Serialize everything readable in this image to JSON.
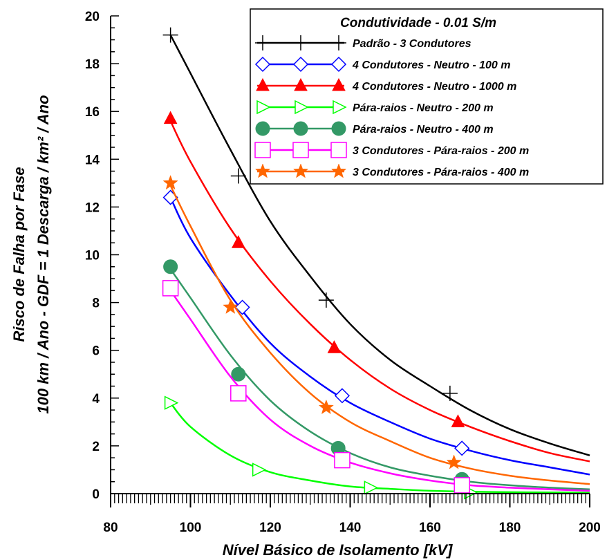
{
  "chart_data": {
    "type": "line",
    "title": "",
    "xlabel": "Nível Básico de Isolamento [kV]",
    "ylabel_line1": "Risco de Falha por Fase",
    "ylabel_line2": "100 km / Ano - GDF = 1 Descarga / km² / Ano",
    "xlim": [
      80,
      200
    ],
    "ylim": [
      0,
      20
    ],
    "xticks": [
      80,
      100,
      120,
      140,
      160,
      180,
      200
    ],
    "yticks": [
      0,
      2,
      4,
      6,
      8,
      10,
      12,
      14,
      16,
      18,
      20
    ],
    "grid": false,
    "legend": {
      "position": "top-right",
      "title": "Condutividade  - 0.01 S/m"
    },
    "series": [
      {
        "name": "Padrão -  3 Condutores",
        "color": "#000000",
        "marker": "plus",
        "curve": [
          [
            95,
            19.2
          ],
          [
            100,
            17.6
          ],
          [
            110,
            14.4
          ],
          [
            120,
            11.4
          ],
          [
            130,
            9.1
          ],
          [
            140,
            7.1
          ],
          [
            150,
            5.6
          ],
          [
            160,
            4.5
          ],
          [
            170,
            3.5
          ],
          [
            180,
            2.7
          ],
          [
            190,
            2.1
          ],
          [
            200,
            1.6
          ]
        ],
        "markers": [
          [
            95,
            19.2
          ],
          [
            112,
            13.3
          ],
          [
            134,
            8.1
          ],
          [
            165,
            4.2
          ]
        ]
      },
      {
        "name": "4 Condutores - Neutro - 100 m",
        "color": "#0000ff",
        "marker": "diamond",
        "curve": [
          [
            95,
            12.4
          ],
          [
            100,
            10.7
          ],
          [
            110,
            8.3
          ],
          [
            120,
            6.3
          ],
          [
            130,
            4.9
          ],
          [
            140,
            3.8
          ],
          [
            150,
            3.0
          ],
          [
            160,
            2.3
          ],
          [
            170,
            1.8
          ],
          [
            180,
            1.4
          ],
          [
            190,
            1.1
          ],
          [
            200,
            0.8
          ]
        ],
        "markers": [
          [
            95,
            12.4
          ],
          [
            113,
            7.8
          ],
          [
            138,
            4.1
          ],
          [
            168,
            1.9
          ]
        ]
      },
      {
        "name": "4 Condutores - Neutro - 1000 m",
        "color": "#ff0000",
        "marker": "triangle",
        "curve": [
          [
            95,
            15.6
          ],
          [
            100,
            13.9
          ],
          [
            110,
            11.1
          ],
          [
            120,
            8.9
          ],
          [
            130,
            7.1
          ],
          [
            140,
            5.6
          ],
          [
            150,
            4.4
          ],
          [
            160,
            3.5
          ],
          [
            170,
            2.8
          ],
          [
            180,
            2.2
          ],
          [
            190,
            1.7
          ],
          [
            200,
            1.35
          ]
        ],
        "markers": [
          [
            95,
            15.7
          ],
          [
            112,
            10.5
          ],
          [
            136,
            6.1
          ],
          [
            167,
            3.0
          ]
        ]
      },
      {
        "name": "Pára-raios - Neutro - 200 m",
        "color": "#00ff00",
        "marker": "triangle-right",
        "curve": [
          [
            95,
            3.8
          ],
          [
            100,
            2.8
          ],
          [
            110,
            1.6
          ],
          [
            120,
            0.9
          ],
          [
            130,
            0.55
          ],
          [
            140,
            0.3
          ],
          [
            150,
            0.2
          ],
          [
            160,
            0.12
          ],
          [
            170,
            0.08
          ],
          [
            180,
            0.06
          ],
          [
            190,
            0.05
          ],
          [
            200,
            0.04
          ]
        ],
        "markers": [
          [
            95,
            3.8
          ],
          [
            117,
            1.0
          ],
          [
            145,
            0.25
          ],
          [
            170,
            0.05
          ]
        ]
      },
      {
        "name": "Pára-raios - Neutro - 400 m",
        "color": "#339966",
        "marker": "circle",
        "curve": [
          [
            95,
            9.4
          ],
          [
            100,
            8.2
          ],
          [
            110,
            5.8
          ],
          [
            120,
            3.9
          ],
          [
            130,
            2.6
          ],
          [
            140,
            1.7
          ],
          [
            150,
            1.1
          ],
          [
            160,
            0.75
          ],
          [
            170,
            0.5
          ],
          [
            180,
            0.35
          ],
          [
            190,
            0.25
          ],
          [
            200,
            0.18
          ]
        ],
        "markers": [
          [
            95,
            9.5
          ],
          [
            112,
            5.0
          ],
          [
            137,
            1.9
          ],
          [
            168,
            0.6
          ]
        ]
      },
      {
        "name": "3 Condutores - Pára-raios - 200 m",
        "color": "#ff00ff",
        "marker": "square",
        "curve": [
          [
            95,
            8.5
          ],
          [
            100,
            7.3
          ],
          [
            110,
            4.9
          ],
          [
            120,
            3.1
          ],
          [
            130,
            2.0
          ],
          [
            140,
            1.3
          ],
          [
            150,
            0.85
          ],
          [
            160,
            0.55
          ],
          [
            170,
            0.35
          ],
          [
            180,
            0.25
          ],
          [
            190,
            0.18
          ],
          [
            200,
            0.12
          ]
        ],
        "markers": [
          [
            95,
            8.6
          ],
          [
            112,
            4.2
          ],
          [
            138,
            1.4
          ],
          [
            168,
            0.35
          ]
        ]
      },
      {
        "name": "3 Condutores - Pára-raios - 400 m",
        "color": "#ff6600",
        "marker": "star",
        "curve": [
          [
            95,
            12.9
          ],
          [
            100,
            11.2
          ],
          [
            110,
            8.1
          ],
          [
            120,
            5.9
          ],
          [
            130,
            4.2
          ],
          [
            140,
            3.0
          ],
          [
            150,
            2.2
          ],
          [
            160,
            1.5
          ],
          [
            170,
            1.05
          ],
          [
            180,
            0.75
          ],
          [
            190,
            0.55
          ],
          [
            200,
            0.4
          ]
        ],
        "markers": [
          [
            95,
            13.0
          ],
          [
            110,
            7.8
          ],
          [
            134,
            3.6
          ],
          [
            166,
            1.3
          ]
        ]
      }
    ]
  }
}
